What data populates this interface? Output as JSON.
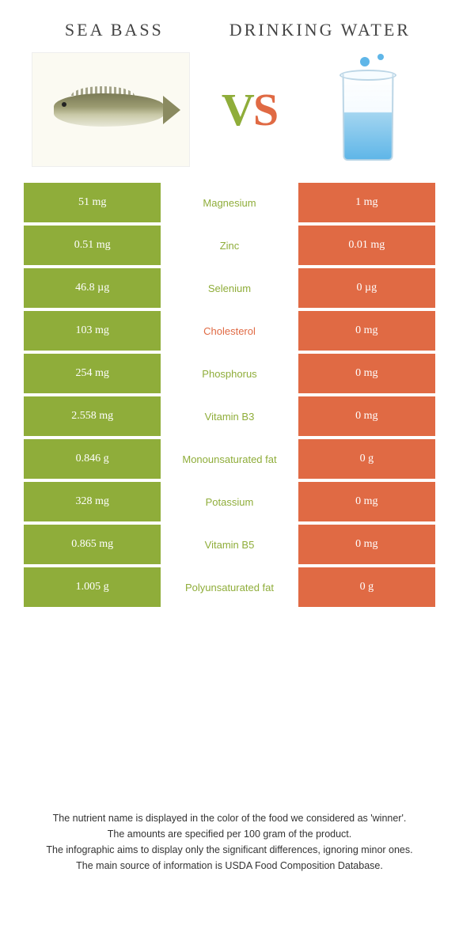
{
  "colors": {
    "left_cell_bg": "#8fad3a",
    "right_cell_bg": "#e06a44",
    "left_text": "#8fad3a",
    "right_text": "#e06a44",
    "cell_text": "#ffffff",
    "page_bg": "#ffffff"
  },
  "header": {
    "left_title": "Sea bass",
    "right_title": "Drinking water",
    "vs_v": "V",
    "vs_s": "S"
  },
  "rows": [
    {
      "left": "51 mg",
      "label": "Magnesium",
      "right": "1 mg",
      "winner": "left"
    },
    {
      "left": "0.51 mg",
      "label": "Zinc",
      "right": "0.01 mg",
      "winner": "left"
    },
    {
      "left": "46.8 µg",
      "label": "Selenium",
      "right": "0 µg",
      "winner": "left"
    },
    {
      "left": "103 mg",
      "label": "Cholesterol",
      "right": "0 mg",
      "winner": "right"
    },
    {
      "left": "254 mg",
      "label": "Phosphorus",
      "right": "0 mg",
      "winner": "left"
    },
    {
      "left": "2.558 mg",
      "label": "Vitamin B3",
      "right": "0 mg",
      "winner": "left"
    },
    {
      "left": "0.846 g",
      "label": "Monounsaturated fat",
      "right": "0 g",
      "winner": "left"
    },
    {
      "left": "328 mg",
      "label": "Potassium",
      "right": "0 mg",
      "winner": "left"
    },
    {
      "left": "0.865 mg",
      "label": "Vitamin B5",
      "right": "0 mg",
      "winner": "left"
    },
    {
      "left": "1.005 g",
      "label": "Polyunsaturated fat",
      "right": "0 g",
      "winner": "left"
    }
  ],
  "footer": {
    "line1": "The nutrient name is displayed in the color of the food we considered as 'winner'.",
    "line2": "The amounts are specified per 100 gram of the product.",
    "line3": "The infographic aims to display only the significant differences, ignoring minor ones.",
    "line4": "The main source of information is USDA Food Composition Database."
  }
}
